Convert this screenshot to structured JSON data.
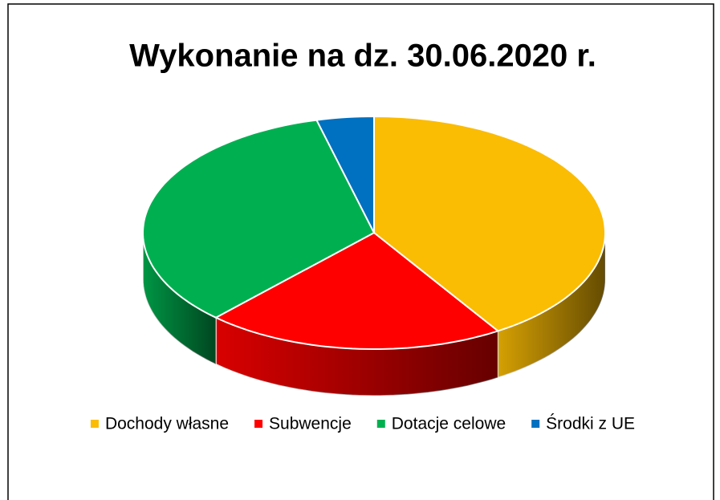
{
  "chart_data": {
    "type": "pie",
    "title": "Wykonanie na dz. 30.06.2020 r.",
    "categories": [
      "Dochody własne",
      "Subwencje",
      "Dotacje celowe",
      "Środki z UE"
    ],
    "values": [
      41,
      21,
      34,
      4
    ],
    "colors": [
      "#fbbc04",
      "#ff0000",
      "#00b050",
      "#0070c0"
    ],
    "legend": "bottom"
  }
}
